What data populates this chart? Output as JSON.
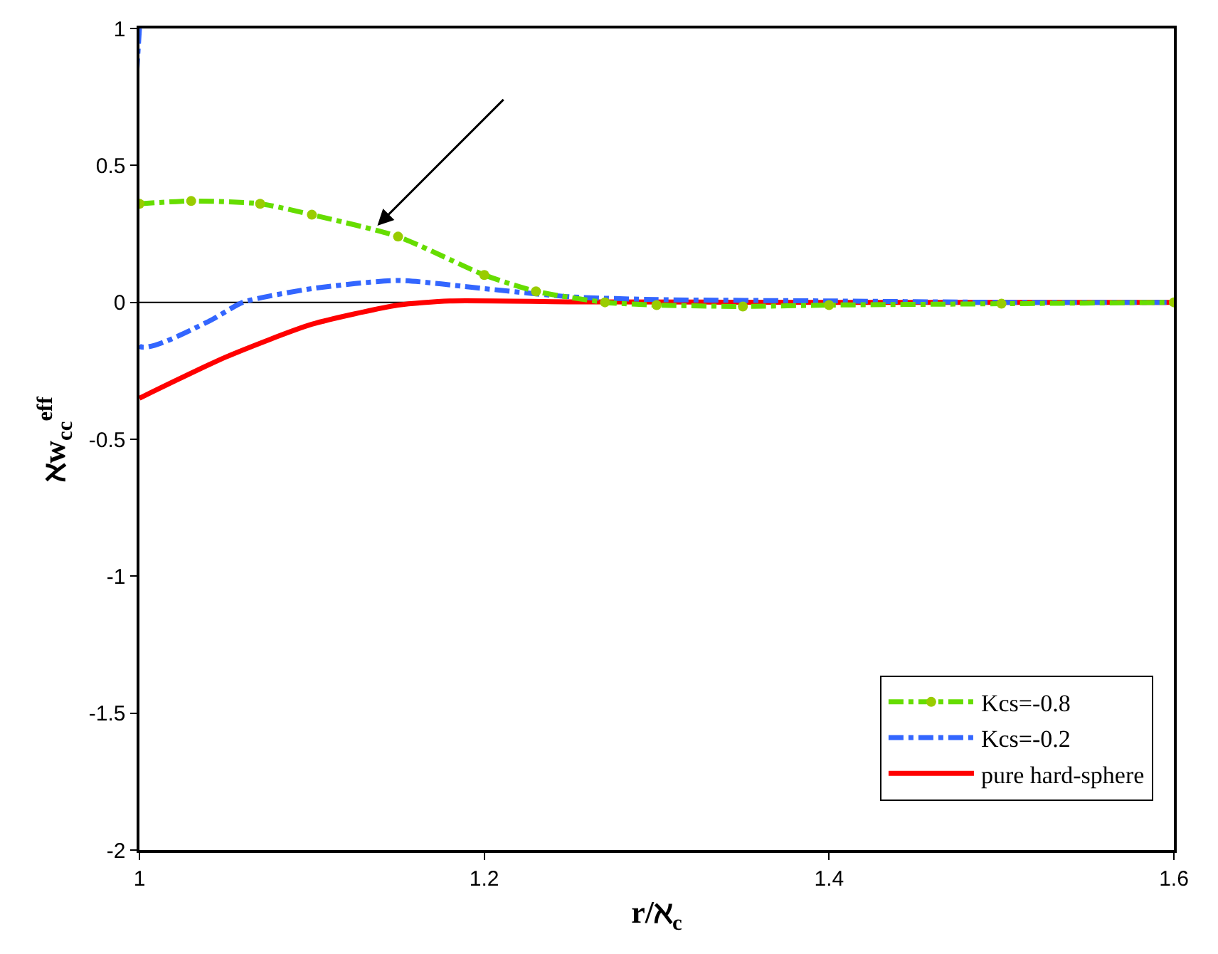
{
  "chart_data": {
    "type": "line",
    "xlabel": "r/ℵ$_{c}$",
    "ylabel": "ℵw$_{cc}$$^{eff}$",
    "xlim": [
      1,
      1.6
    ],
    "xticks": [
      1,
      1.2,
      1.4,
      1.6
    ],
    "ylim": [
      -2,
      1
    ],
    "yticks": [
      -2,
      -1.5,
      -1,
      -0.5,
      0,
      0.5,
      1
    ],
    "grid": false,
    "legend": "bottom right",
    "ref_lines": [
      {
        "axis": "y",
        "value": 0,
        "color": "#000000"
      }
    ],
    "series": [
      {
        "name": "Kcs=-0.8",
        "color": "#66dd00",
        "line_style": "dashed",
        "marker": "circle",
        "x": [
          1,
          1.03,
          1.07,
          1.1,
          1.15,
          1.2,
          1.23,
          1.27,
          1.3,
          1.35,
          1.4,
          1.5,
          1.6
        ],
        "values": [
          0.36,
          0.37,
          0.36,
          0.32,
          0.24,
          0.1,
          0.04,
          0,
          -0.01,
          -0.015,
          -0.01,
          -0.005,
          0
        ]
      },
      {
        "name": "Kcs=-0.2",
        "color": "#3366ff",
        "line_style": "dashed",
        "marker": "none",
        "x": [
          1,
          1,
          1.04,
          1.06,
          1.1,
          1.15,
          1.2,
          1.25,
          1.3,
          1.4,
          1.5,
          1.6
        ],
        "values": [
          1,
          -0.16,
          -0.07,
          0,
          0.05,
          0.08,
          0.05,
          0.02,
          0.01,
          0.005,
          0,
          0
        ]
      },
      {
        "name": "pure hard-sphere",
        "color": "#ff0000",
        "line_style": "solid",
        "marker": "none",
        "x": [
          1,
          1.05,
          1.1,
          1.15,
          1.18,
          1.25,
          1.4,
          1.6
        ],
        "values": [
          -0.35,
          -0.2,
          -0.08,
          -0.01,
          0.005,
          0.002,
          0,
          0
        ]
      }
    ]
  }
}
